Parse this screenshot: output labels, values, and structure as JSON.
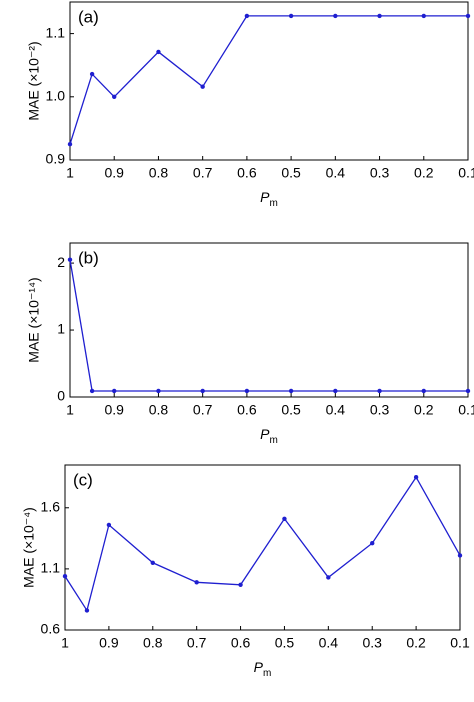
{
  "chart_data": [
    {
      "type": "line",
      "annotation": "(a)",
      "ylabel": "MAE (×10⁻²)",
      "xlabel": {
        "main": "P",
        "sub": "m"
      },
      "x": [
        1,
        0.95,
        0.9,
        0.8,
        0.7,
        0.6,
        0.5,
        0.4,
        0.3,
        0.2,
        0.1
      ],
      "series": [
        {
          "color": "#1f1fd0",
          "values": [
            0.925,
            1.036,
            1.0,
            1.071,
            1.016,
            1.128,
            1.128,
            1.128,
            1.128,
            1.128,
            1.128
          ]
        }
      ],
      "xlim": [
        1,
        0.1
      ],
      "ylim": [
        0.9,
        1.15
      ],
      "xticks": [
        1,
        0.9,
        0.8,
        0.7,
        0.6,
        0.5,
        0.4,
        0.3,
        0.2,
        0.1
      ],
      "yticks": [
        0.9,
        {
          "value": 1.0,
          "label": "1.0"
        },
        1.1
      ]
    },
    {
      "type": "line",
      "annotation": "(b)",
      "ylabel": "MAE (×10⁻¹⁴)",
      "xlabel": {
        "main": "P",
        "sub": "m"
      },
      "x": [
        1,
        0.95,
        0.9,
        0.8,
        0.7,
        0.6,
        0.5,
        0.4,
        0.3,
        0.2,
        0.1
      ],
      "series": [
        {
          "color": "#1f1fd0",
          "values": [
            2.05,
            0.09,
            0.09,
            0.09,
            0.09,
            0.09,
            0.09,
            0.09,
            0.09,
            0.09,
            0.09
          ]
        }
      ],
      "xlim": [
        1,
        0.1
      ],
      "ylim": [
        0,
        2.3
      ],
      "xticks": [
        1,
        0.9,
        0.8,
        0.7,
        0.6,
        0.5,
        0.4,
        0.3,
        0.2,
        0.1
      ],
      "yticks": [
        0,
        1,
        2
      ]
    },
    {
      "type": "line",
      "annotation": "(c)",
      "ylabel": "MAE (×10⁻⁴)",
      "xlabel": {
        "main": "P",
        "sub": "m"
      },
      "x": [
        1,
        0.95,
        0.9,
        0.8,
        0.7,
        0.6,
        0.5,
        0.4,
        0.3,
        0.2,
        0.1
      ],
      "series": [
        {
          "color": "#1f1fd0",
          "values": [
            1.04,
            0.76,
            1.46,
            1.15,
            0.99,
            0.97,
            1.51,
            1.03,
            1.31,
            1.85,
            1.21
          ]
        }
      ],
      "xlim": [
        1,
        0.1
      ],
      "ylim": [
        0.6,
        1.95
      ],
      "xticks": [
        1,
        0.9,
        0.8,
        0.7,
        0.6,
        0.5,
        0.4,
        0.3,
        0.2,
        0.1
      ],
      "yticks": [
        0.6,
        1.1,
        1.6
      ]
    }
  ]
}
